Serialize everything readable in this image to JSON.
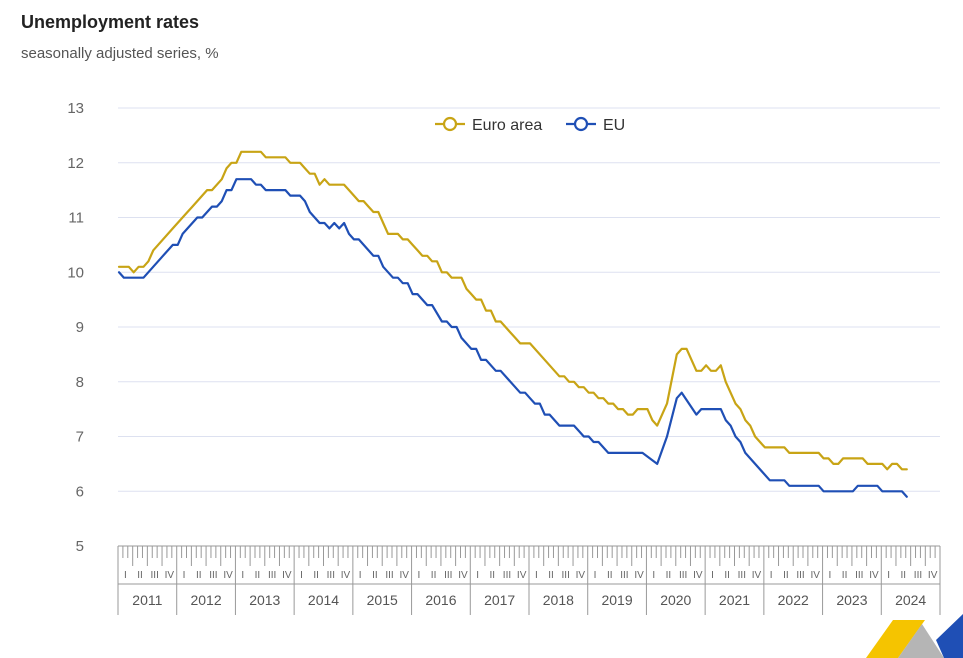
{
  "header": {
    "title": "Unemployment rates",
    "subtitle": "seasonally adjusted series, %"
  },
  "colors": {
    "euro_area": "#C8A415",
    "eu": "#1F4FB5",
    "grid": "#DDE1F0",
    "axis": "#999999",
    "logo_yellow": "#F5C400",
    "logo_grey": "#B5B5B5",
    "logo_blue": "#1F4FB5"
  },
  "chart_data": {
    "type": "line",
    "title": "Unemployment rates",
    "subtitle": "seasonally adjusted series, %",
    "xlabel": "",
    "ylabel": "",
    "ylim": [
      5,
      13
    ],
    "yticks": [
      5,
      6,
      7,
      8,
      9,
      10,
      11,
      12,
      13
    ],
    "grid": true,
    "legend_position": "top-center",
    "x_start": "2011-01",
    "x_end": "2024-03",
    "frequency": "monthly",
    "years": [
      "2011",
      "2012",
      "2013",
      "2014",
      "2015",
      "2016",
      "2017",
      "2018",
      "2019",
      "2020",
      "2021",
      "2022",
      "2023",
      "2024"
    ],
    "quarter_labels": [
      "I",
      "II",
      "III",
      "IV"
    ],
    "series": [
      {
        "name": "Euro area",
        "color": "#C8A415",
        "points": [
          [
            "2011-01",
            10.1
          ],
          [
            "2011-03",
            10.1
          ],
          [
            "2011-04",
            10.0
          ],
          [
            "2011-05",
            10.1
          ],
          [
            "2011-06",
            10.1
          ],
          [
            "2011-07",
            10.2
          ],
          [
            "2011-08",
            10.4
          ],
          [
            "2011-12",
            10.8
          ],
          [
            "2012-03",
            11.1
          ],
          [
            "2012-04",
            11.2
          ],
          [
            "2012-06",
            11.4
          ],
          [
            "2012-07",
            11.5
          ],
          [
            "2012-08",
            11.5
          ],
          [
            "2012-10",
            11.7
          ],
          [
            "2012-11",
            11.9
          ],
          [
            "2012-12",
            12.0
          ],
          [
            "2013-01",
            12.0
          ],
          [
            "2013-02",
            12.2
          ],
          [
            "2013-06",
            12.2
          ],
          [
            "2013-07",
            12.1
          ],
          [
            "2013-11",
            12.1
          ],
          [
            "2013-12",
            12.0
          ],
          [
            "2014-02",
            12.0
          ],
          [
            "2014-03",
            11.9
          ],
          [
            "2014-04",
            11.8
          ],
          [
            "2014-05",
            11.8
          ],
          [
            "2014-06",
            11.6
          ],
          [
            "2014-07",
            11.7
          ],
          [
            "2014-08",
            11.6
          ],
          [
            "2014-11",
            11.6
          ],
          [
            "2014-12",
            11.5
          ],
          [
            "2015-01",
            11.4
          ],
          [
            "2015-02",
            11.3
          ],
          [
            "2015-03",
            11.3
          ],
          [
            "2015-04",
            11.2
          ],
          [
            "2015-05",
            11.1
          ],
          [
            "2015-06",
            11.1
          ],
          [
            "2015-07",
            10.9
          ],
          [
            "2015-08",
            10.7
          ],
          [
            "2015-10",
            10.7
          ],
          [
            "2015-11",
            10.6
          ],
          [
            "2015-12",
            10.6
          ],
          [
            "2016-01",
            10.5
          ],
          [
            "2016-02",
            10.4
          ],
          [
            "2016-03",
            10.3
          ],
          [
            "2016-04",
            10.3
          ],
          [
            "2016-05",
            10.2
          ],
          [
            "2016-06",
            10.2
          ],
          [
            "2016-07",
            10.0
          ],
          [
            "2016-08",
            10.0
          ],
          [
            "2016-09",
            9.9
          ],
          [
            "2016-11",
            9.9
          ],
          [
            "2016-12",
            9.7
          ],
          [
            "2017-01",
            9.6
          ],
          [
            "2017-02",
            9.5
          ],
          [
            "2017-03",
            9.5
          ],
          [
            "2017-04",
            9.3
          ],
          [
            "2017-05",
            9.3
          ],
          [
            "2017-06",
            9.1
          ],
          [
            "2017-07",
            9.1
          ],
          [
            "2017-08",
            9.0
          ],
          [
            "2017-09",
            8.9
          ],
          [
            "2017-10",
            8.8
          ],
          [
            "2017-11",
            8.7
          ],
          [
            "2018-01",
            8.7
          ],
          [
            "2018-05",
            8.3
          ],
          [
            "2018-06",
            8.2
          ],
          [
            "2018-07",
            8.1
          ],
          [
            "2018-08",
            8.1
          ],
          [
            "2018-09",
            8.0
          ],
          [
            "2018-10",
            8.0
          ],
          [
            "2018-11",
            7.9
          ],
          [
            "2018-12",
            7.9
          ],
          [
            "2019-01",
            7.8
          ],
          [
            "2019-02",
            7.8
          ],
          [
            "2019-03",
            7.7
          ],
          [
            "2019-04",
            7.7
          ],
          [
            "2019-05",
            7.6
          ],
          [
            "2019-06",
            7.6
          ],
          [
            "2019-07",
            7.5
          ],
          [
            "2019-08",
            7.5
          ],
          [
            "2019-09",
            7.4
          ],
          [
            "2019-10",
            7.4
          ],
          [
            "2019-11",
            7.5
          ],
          [
            "2019-12",
            7.5
          ],
          [
            "2020-01",
            7.5
          ],
          [
            "2020-02",
            7.3
          ],
          [
            "2020-03",
            7.2
          ],
          [
            "2020-05",
            7.6
          ],
          [
            "2020-07",
            8.5
          ],
          [
            "2020-08",
            8.6
          ],
          [
            "2020-09",
            8.6
          ],
          [
            "2020-11",
            8.2
          ],
          [
            "2020-12",
            8.2
          ],
          [
            "2021-01",
            8.3
          ],
          [
            "2021-02",
            8.2
          ],
          [
            "2021-03",
            8.2
          ],
          [
            "2021-04",
            8.3
          ],
          [
            "2021-05",
            8.0
          ],
          [
            "2021-06",
            7.8
          ],
          [
            "2021-07",
            7.6
          ],
          [
            "2021-08",
            7.5
          ],
          [
            "2021-09",
            7.3
          ],
          [
            "2021-10",
            7.2
          ],
          [
            "2021-11",
            7.0
          ],
          [
            "2021-12",
            6.9
          ],
          [
            "2022-01",
            6.8
          ],
          [
            "2022-05",
            6.8
          ],
          [
            "2022-06",
            6.7
          ],
          [
            "2022-12",
            6.7
          ],
          [
            "2023-01",
            6.6
          ],
          [
            "2023-02",
            6.6
          ],
          [
            "2023-03",
            6.5
          ],
          [
            "2023-04",
            6.5
          ],
          [
            "2023-05",
            6.6
          ],
          [
            "2023-09",
            6.6
          ],
          [
            "2023-10",
            6.5
          ],
          [
            "2023-12",
            6.5
          ],
          [
            "2024-01",
            6.5
          ],
          [
            "2024-02",
            6.4
          ],
          [
            "2024-03",
            6.5
          ],
          [
            "2024-04",
            6.5
          ],
          [
            "2024-05",
            6.4
          ],
          [
            "2024-06",
            6.4
          ]
        ]
      },
      {
        "name": "EU",
        "color": "#1F4FB5",
        "points": [
          [
            "2011-01",
            10.0
          ],
          [
            "2011-02",
            9.9
          ],
          [
            "2011-06",
            9.9
          ],
          [
            "2011-10",
            10.3
          ],
          [
            "2011-12",
            10.5
          ],
          [
            "2012-01",
            10.5
          ],
          [
            "2012-02",
            10.7
          ],
          [
            "2012-05",
            11.0
          ],
          [
            "2012-06",
            11.0
          ],
          [
            "2012-08",
            11.2
          ],
          [
            "2012-09",
            11.2
          ],
          [
            "2012-10",
            11.3
          ],
          [
            "2012-11",
            11.5
          ],
          [
            "2012-12",
            11.5
          ],
          [
            "2013-01",
            11.7
          ],
          [
            "2013-04",
            11.7
          ],
          [
            "2013-05",
            11.6
          ],
          [
            "2013-06",
            11.6
          ],
          [
            "2013-07",
            11.5
          ],
          [
            "2013-11",
            11.5
          ],
          [
            "2013-12",
            11.4
          ],
          [
            "2014-02",
            11.4
          ],
          [
            "2014-03",
            11.3
          ],
          [
            "2014-04",
            11.1
          ],
          [
            "2014-06",
            10.9
          ],
          [
            "2014-07",
            10.9
          ],
          [
            "2014-08",
            10.8
          ],
          [
            "2014-09",
            10.9
          ],
          [
            "2014-10",
            10.8
          ],
          [
            "2014-11",
            10.9
          ],
          [
            "2014-12",
            10.7
          ],
          [
            "2015-01",
            10.6
          ],
          [
            "2015-02",
            10.6
          ],
          [
            "2015-05",
            10.3
          ],
          [
            "2015-06",
            10.3
          ],
          [
            "2015-07",
            10.1
          ],
          [
            "2015-09",
            9.9
          ],
          [
            "2015-10",
            9.9
          ],
          [
            "2015-11",
            9.8
          ],
          [
            "2015-12",
            9.8
          ],
          [
            "2016-01",
            9.6
          ],
          [
            "2016-02",
            9.6
          ],
          [
            "2016-04",
            9.4
          ],
          [
            "2016-05",
            9.4
          ],
          [
            "2016-07",
            9.1
          ],
          [
            "2016-08",
            9.1
          ],
          [
            "2016-09",
            9.0
          ],
          [
            "2016-10",
            9.0
          ],
          [
            "2016-11",
            8.8
          ],
          [
            "2017-01",
            8.6
          ],
          [
            "2017-02",
            8.6
          ],
          [
            "2017-03",
            8.4
          ],
          [
            "2017-04",
            8.4
          ],
          [
            "2017-06",
            8.2
          ],
          [
            "2017-07",
            8.2
          ],
          [
            "2017-11",
            7.8
          ],
          [
            "2017-12",
            7.8
          ],
          [
            "2018-01",
            7.7
          ],
          [
            "2018-02",
            7.6
          ],
          [
            "2018-03",
            7.6
          ],
          [
            "2018-04",
            7.4
          ],
          [
            "2018-05",
            7.4
          ],
          [
            "2018-07",
            7.2
          ],
          [
            "2018-10",
            7.2
          ],
          [
            "2018-11",
            7.1
          ],
          [
            "2018-12",
            7.0
          ],
          [
            "2019-01",
            7.0
          ],
          [
            "2019-02",
            6.9
          ],
          [
            "2019-03",
            6.9
          ],
          [
            "2019-05",
            6.7
          ],
          [
            "2019-12",
            6.7
          ],
          [
            "2020-03",
            6.5
          ],
          [
            "2020-05",
            7.0
          ],
          [
            "2020-07",
            7.7
          ],
          [
            "2020-08",
            7.8
          ],
          [
            "2020-11",
            7.4
          ],
          [
            "2020-12",
            7.5
          ],
          [
            "2021-04",
            7.5
          ],
          [
            "2021-05",
            7.3
          ],
          [
            "2021-06",
            7.2
          ],
          [
            "2021-07",
            7.0
          ],
          [
            "2021-08",
            6.9
          ],
          [
            "2021-09",
            6.7
          ],
          [
            "2022-02",
            6.2
          ],
          [
            "2022-05",
            6.2
          ],
          [
            "2022-06",
            6.1
          ],
          [
            "2022-12",
            6.1
          ],
          [
            "2023-01",
            6.0
          ],
          [
            "2023-07",
            6.0
          ],
          [
            "2023-08",
            6.1
          ],
          [
            "2023-12",
            6.1
          ],
          [
            "2024-01",
            6.0
          ],
          [
            "2024-05",
            6.0
          ],
          [
            "2024-06",
            5.9
          ]
        ]
      }
    ]
  }
}
